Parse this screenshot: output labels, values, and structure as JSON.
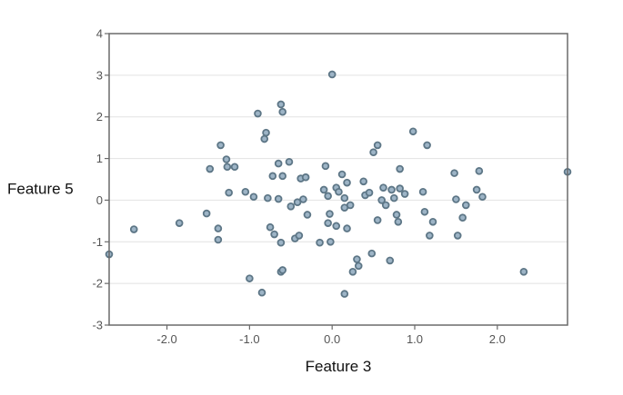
{
  "chart_data": {
    "type": "scatter",
    "xlabel": "Feature 3",
    "ylabel": "Feature 5",
    "xlim": [
      -2.7,
      2.85
    ],
    "ylim": [
      -3,
      4
    ],
    "xticks": [
      -2.0,
      -1.0,
      0.0,
      1.0,
      2.0
    ],
    "xtick_labels": [
      "-2.0",
      "-1.0",
      "0.0",
      "1.0",
      "2.0"
    ],
    "yticks": [
      -3,
      -2,
      -1,
      0,
      1,
      2,
      3,
      4
    ],
    "ytick_labels": [
      "-3",
      "-2",
      "-1",
      "0",
      "1",
      "2",
      "3",
      "4"
    ],
    "grid": "horizontal",
    "colors": {
      "marker_fill": "#9db4c6",
      "marker_edge": "#5d7686",
      "grid": "#e2e2e2",
      "frame": "#6a6a6a"
    },
    "points": [
      [
        -2.7,
        -1.3
      ],
      [
        -2.4,
        -0.7
      ],
      [
        -1.85,
        -0.55
      ],
      [
        -1.52,
        -0.32
      ],
      [
        -1.38,
        -0.68
      ],
      [
        -1.38,
        -0.95
      ],
      [
        -1.48,
        0.75
      ],
      [
        -1.35,
        1.32
      ],
      [
        -1.28,
        0.98
      ],
      [
        -1.27,
        0.8
      ],
      [
        -1.18,
        0.8
      ],
      [
        -1.25,
        0.18
      ],
      [
        -1.05,
        0.2
      ],
      [
        -0.95,
        0.08
      ],
      [
        -1.0,
        -1.88
      ],
      [
        -0.85,
        -2.22
      ],
      [
        -0.9,
        2.08
      ],
      [
        -0.8,
        1.62
      ],
      [
        -0.82,
        1.47
      ],
      [
        -0.78,
        0.05
      ],
      [
        -0.72,
        0.58
      ],
      [
        -0.65,
        0.88
      ],
      [
        -0.65,
        0.03
      ],
      [
        -0.6,
        0.58
      ],
      [
        -0.62,
        2.3
      ],
      [
        -0.6,
        2.12
      ],
      [
        -0.52,
        0.92
      ],
      [
        -0.5,
        -0.15
      ],
      [
        -0.42,
        -0.05
      ],
      [
        -0.38,
        0.52
      ],
      [
        -0.32,
        0.55
      ],
      [
        -0.35,
        0.02
      ],
      [
        -0.3,
        -0.35
      ],
      [
        -0.75,
        -0.65
      ],
      [
        -0.7,
        -0.82
      ],
      [
        -0.62,
        -1.02
      ],
      [
        -0.45,
        -0.92
      ],
      [
        -0.4,
        -0.85
      ],
      [
        -0.62,
        -1.72
      ],
      [
        -0.6,
        -1.68
      ],
      [
        -0.15,
        -1.02
      ],
      [
        -0.05,
        -0.55
      ],
      [
        -0.02,
        -1.0
      ],
      [
        0.0,
        3.02
      ],
      [
        -0.1,
        0.25
      ],
      [
        -0.08,
        0.82
      ],
      [
        -0.05,
        0.1
      ],
      [
        0.05,
        0.3
      ],
      [
        0.08,
        0.2
      ],
      [
        0.12,
        0.62
      ],
      [
        0.15,
        0.05
      ],
      [
        0.15,
        -0.18
      ],
      [
        0.18,
        0.42
      ],
      [
        0.22,
        -0.12
      ],
      [
        0.05,
        -0.62
      ],
      [
        0.18,
        -0.68
      ],
      [
        0.25,
        -1.72
      ],
      [
        0.3,
        -1.42
      ],
      [
        0.32,
        -1.58
      ],
      [
        0.38,
        0.45
      ],
      [
        0.4,
        0.12
      ],
      [
        0.45,
        0.18
      ],
      [
        0.5,
        1.15
      ],
      [
        0.55,
        1.32
      ],
      [
        0.55,
        -0.48
      ],
      [
        0.6,
        0.0
      ],
      [
        0.62,
        0.3
      ],
      [
        0.65,
        -0.12
      ],
      [
        0.7,
        -1.45
      ],
      [
        0.48,
        -1.28
      ],
      [
        0.72,
        0.25
      ],
      [
        0.75,
        0.05
      ],
      [
        0.78,
        -0.35
      ],
      [
        0.82,
        0.75
      ],
      [
        0.82,
        0.28
      ],
      [
        0.8,
        -0.52
      ],
      [
        0.88,
        0.15
      ],
      [
        0.98,
        1.65
      ],
      [
        1.1,
        0.2
      ],
      [
        1.12,
        -0.28
      ],
      [
        1.15,
        1.32
      ],
      [
        1.18,
        -0.85
      ],
      [
        1.22,
        -0.52
      ],
      [
        0.15,
        -2.25
      ],
      [
        1.48,
        0.65
      ],
      [
        1.5,
        0.02
      ],
      [
        1.52,
        -0.85
      ],
      [
        1.58,
        -0.42
      ],
      [
        1.62,
        -0.12
      ],
      [
        1.75,
        0.25
      ],
      [
        1.78,
        0.7
      ],
      [
        1.82,
        0.08
      ],
      [
        2.32,
        -1.72
      ],
      [
        2.85,
        0.68
      ],
      [
        -0.03,
        -0.33
      ]
    ]
  }
}
